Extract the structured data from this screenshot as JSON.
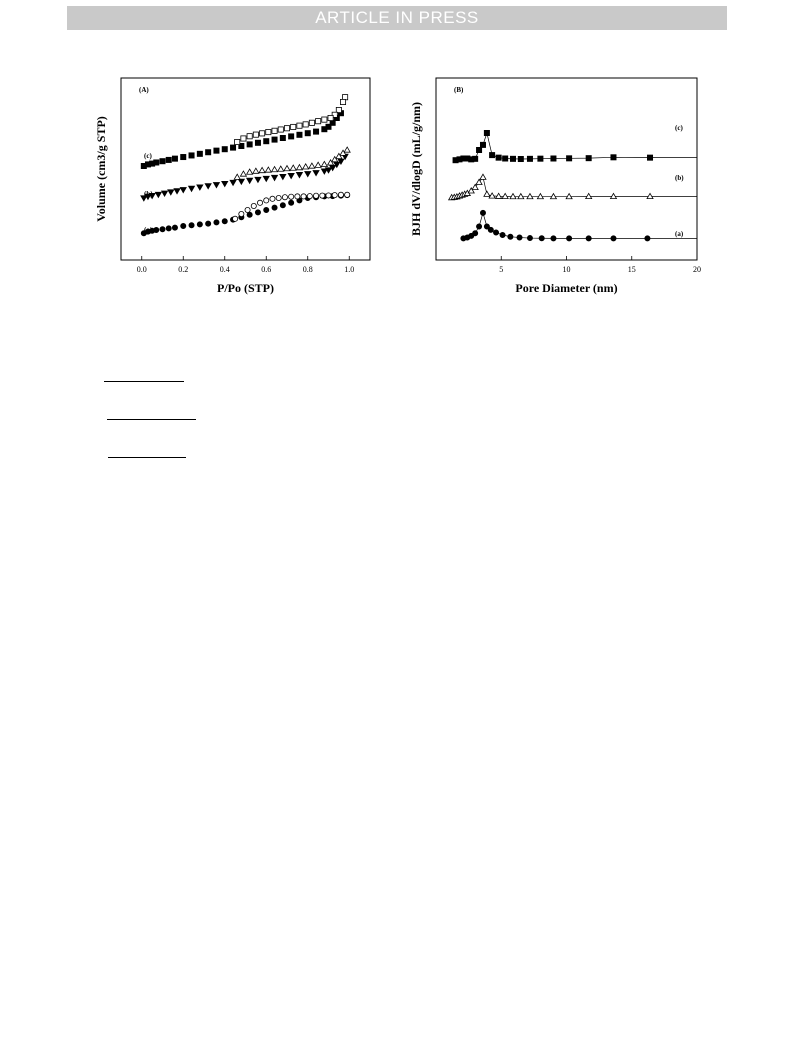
{
  "header": {
    "banner_text": "ARTICLE IN PRESS",
    "banner_color": "#c9c9c9"
  },
  "chart_data": [
    {
      "type": "scatter",
      "panel": "(A)",
      "title": "",
      "xlabel": "P/Po (STP)",
      "ylabel": "Volume (cm3/g STP)",
      "xlim": [
        -0.1,
        1.1
      ],
      "xticks": [
        "0.0",
        "0.2",
        "0.4",
        "0.6",
        "0.8",
        "1.0"
      ],
      "ylim": [
        0,
        1
      ],
      "yticks_visible": false,
      "grid": false,
      "series": [
        {
          "name": "(a)",
          "kind": "adsorption",
          "marker": "filled-circle",
          "x": [
            0.01,
            0.03,
            0.05,
            0.07,
            0.1,
            0.13,
            0.16,
            0.2,
            0.24,
            0.28,
            0.32,
            0.36,
            0.4,
            0.44,
            0.48,
            0.52,
            0.56,
            0.6,
            0.64,
            0.68,
            0.72,
            0.76,
            0.8,
            0.84,
            0.88,
            0.92,
            0.96,
            0.99
          ],
          "y": [
            0.08,
            0.09,
            0.095,
            0.1,
            0.105,
            0.11,
            0.115,
            0.125,
            0.13,
            0.135,
            0.14,
            0.148,
            0.155,
            0.165,
            0.18,
            0.195,
            0.21,
            0.225,
            0.24,
            0.255,
            0.27,
            0.285,
            0.3,
            0.305,
            0.31,
            0.312,
            0.315,
            0.318
          ]
        },
        {
          "name": "(a)",
          "kind": "desorption",
          "marker": "open-circle",
          "x": [
            0.99,
            0.96,
            0.93,
            0.9,
            0.87,
            0.84,
            0.81,
            0.78,
            0.75,
            0.72,
            0.69,
            0.66,
            0.63,
            0.6,
            0.57,
            0.54,
            0.51,
            0.48,
            0.45
          ],
          "y": [
            0.32,
            0.32,
            0.318,
            0.316,
            0.315,
            0.314,
            0.312,
            0.31,
            0.31,
            0.308,
            0.305,
            0.3,
            0.295,
            0.285,
            0.27,
            0.25,
            0.225,
            0.2,
            0.17
          ]
        },
        {
          "name": "(b)",
          "kind": "adsorption",
          "marker": "filled-triangle-down",
          "x": [
            0.01,
            0.03,
            0.05,
            0.08,
            0.11,
            0.14,
            0.17,
            0.2,
            0.24,
            0.28,
            0.32,
            0.36,
            0.4,
            0.44,
            0.48,
            0.52,
            0.56,
            0.6,
            0.64,
            0.68,
            0.72,
            0.76,
            0.8,
            0.84,
            0.88,
            0.9,
            0.92,
            0.94,
            0.96,
            0.98
          ],
          "y": [
            0.3,
            0.31,
            0.315,
            0.322,
            0.33,
            0.338,
            0.345,
            0.352,
            0.36,
            0.368,
            0.376,
            0.383,
            0.39,
            0.397,
            0.404,
            0.41,
            0.416,
            0.422,
            0.428,
            0.434,
            0.44,
            0.446,
            0.452,
            0.458,
            0.468,
            0.475,
            0.49,
            0.51,
            0.53,
            0.56
          ]
        },
        {
          "name": "(b)",
          "kind": "desorption",
          "marker": "open-triangle",
          "x": [
            0.99,
            0.97,
            0.95,
            0.93,
            0.91,
            0.88,
            0.85,
            0.82,
            0.79,
            0.76,
            0.73,
            0.7,
            0.67,
            0.64,
            0.61,
            0.58,
            0.55,
            0.52,
            0.49,
            0.46
          ],
          "y": [
            0.6,
            0.58,
            0.56,
            0.54,
            0.52,
            0.51,
            0.505,
            0.5,
            0.495,
            0.49,
            0.487,
            0.484,
            0.481,
            0.478,
            0.475,
            0.472,
            0.468,
            0.462,
            0.45,
            0.43
          ]
        },
        {
          "name": "(c)",
          "kind": "adsorption",
          "marker": "filled-square",
          "x": [
            0.01,
            0.03,
            0.05,
            0.07,
            0.1,
            0.13,
            0.16,
            0.2,
            0.24,
            0.28,
            0.32,
            0.36,
            0.4,
            0.44,
            0.48,
            0.52,
            0.56,
            0.6,
            0.64,
            0.68,
            0.72,
            0.76,
            0.8,
            0.84,
            0.88,
            0.9,
            0.92,
            0.94,
            0.96
          ],
          "y": [
            0.5,
            0.51,
            0.515,
            0.522,
            0.53,
            0.538,
            0.546,
            0.556,
            0.566,
            0.576,
            0.586,
            0.596,
            0.605,
            0.615,
            0.625,
            0.635,
            0.645,
            0.655,
            0.665,
            0.675,
            0.685,
            0.695,
            0.705,
            0.715,
            0.73,
            0.745,
            0.77,
            0.8,
            0.83
          ]
        },
        {
          "name": "(c)",
          "kind": "desorption",
          "marker": "open-square",
          "x": [
            0.98,
            0.97,
            0.95,
            0.93,
            0.91,
            0.88,
            0.85,
            0.82,
            0.79,
            0.76,
            0.73,
            0.7,
            0.67,
            0.64,
            0.61,
            0.58,
            0.55,
            0.52,
            0.49,
            0.46
          ],
          "y": [
            0.93,
            0.9,
            0.85,
            0.82,
            0.8,
            0.79,
            0.78,
            0.77,
            0.76,
            0.752,
            0.744,
            0.736,
            0.728,
            0.72,
            0.712,
            0.704,
            0.696,
            0.686,
            0.672,
            0.65
          ]
        }
      ],
      "curve_labels": [
        "(a)",
        "(b)",
        "(c)"
      ]
    },
    {
      "type": "line",
      "panel": "(B)",
      "title": "",
      "xlabel": "Pore Diameter (nm)",
      "ylabel": "BJH dV/dlogD (mL/g/nm)",
      "xlim": [
        0,
        20
      ],
      "xticks": [
        "5",
        "10",
        "15",
        "20"
      ],
      "ylim": [
        0,
        1
      ],
      "yticks_visible": false,
      "grid": false,
      "series": [
        {
          "name": "(a)",
          "marker": "filled-circle",
          "x": [
            2.1,
            2.4,
            2.7,
            3.0,
            3.3,
            3.6,
            3.9,
            4.2,
            4.6,
            5.1,
            5.7,
            6.4,
            7.2,
            8.1,
            9.0,
            10.2,
            11.7,
            13.6,
            16.2
          ],
          "y": [
            0.08,
            0.085,
            0.095,
            0.11,
            0.15,
            0.23,
            0.15,
            0.13,
            0.115,
            0.1,
            0.09,
            0.085,
            0.082,
            0.081,
            0.08,
            0.08,
            0.08,
            0.08,
            0.08
          ]
        },
        {
          "name": "(b)",
          "marker": "open-triangle",
          "x": [
            1.2,
            1.4,
            1.6,
            1.8,
            2.0,
            2.2,
            2.4,
            2.7,
            3.0,
            3.3,
            3.6,
            3.9,
            4.3,
            4.8,
            5.3,
            5.9,
            6.5,
            7.2,
            8.0,
            9.0,
            10.2,
            11.7,
            13.6,
            16.4
          ],
          "y": [
            0.32,
            0.322,
            0.325,
            0.33,
            0.335,
            0.34,
            0.345,
            0.36,
            0.38,
            0.41,
            0.44,
            0.34,
            0.33,
            0.328,
            0.327,
            0.326,
            0.326,
            0.326,
            0.326,
            0.326,
            0.326,
            0.327,
            0.327,
            0.327
          ]
        },
        {
          "name": "(c)",
          "marker": "filled-square",
          "x": [
            1.5,
            1.8,
            2.1,
            2.4,
            2.7,
            3.0,
            3.3,
            3.6,
            3.9,
            4.3,
            4.8,
            5.3,
            5.9,
            6.5,
            7.2,
            8.0,
            9.0,
            10.2,
            11.7,
            13.6,
            16.4
          ],
          "y": [
            0.54,
            0.545,
            0.55,
            0.55,
            0.545,
            0.548,
            0.6,
            0.63,
            0.7,
            0.57,
            0.555,
            0.55,
            0.548,
            0.547,
            0.548,
            0.549,
            0.55,
            0.551,
            0.552,
            0.557,
            0.555
          ]
        }
      ],
      "curve_labels": [
        "(a)",
        "(b)",
        "(c)"
      ]
    }
  ],
  "footnote_rules": 3
}
